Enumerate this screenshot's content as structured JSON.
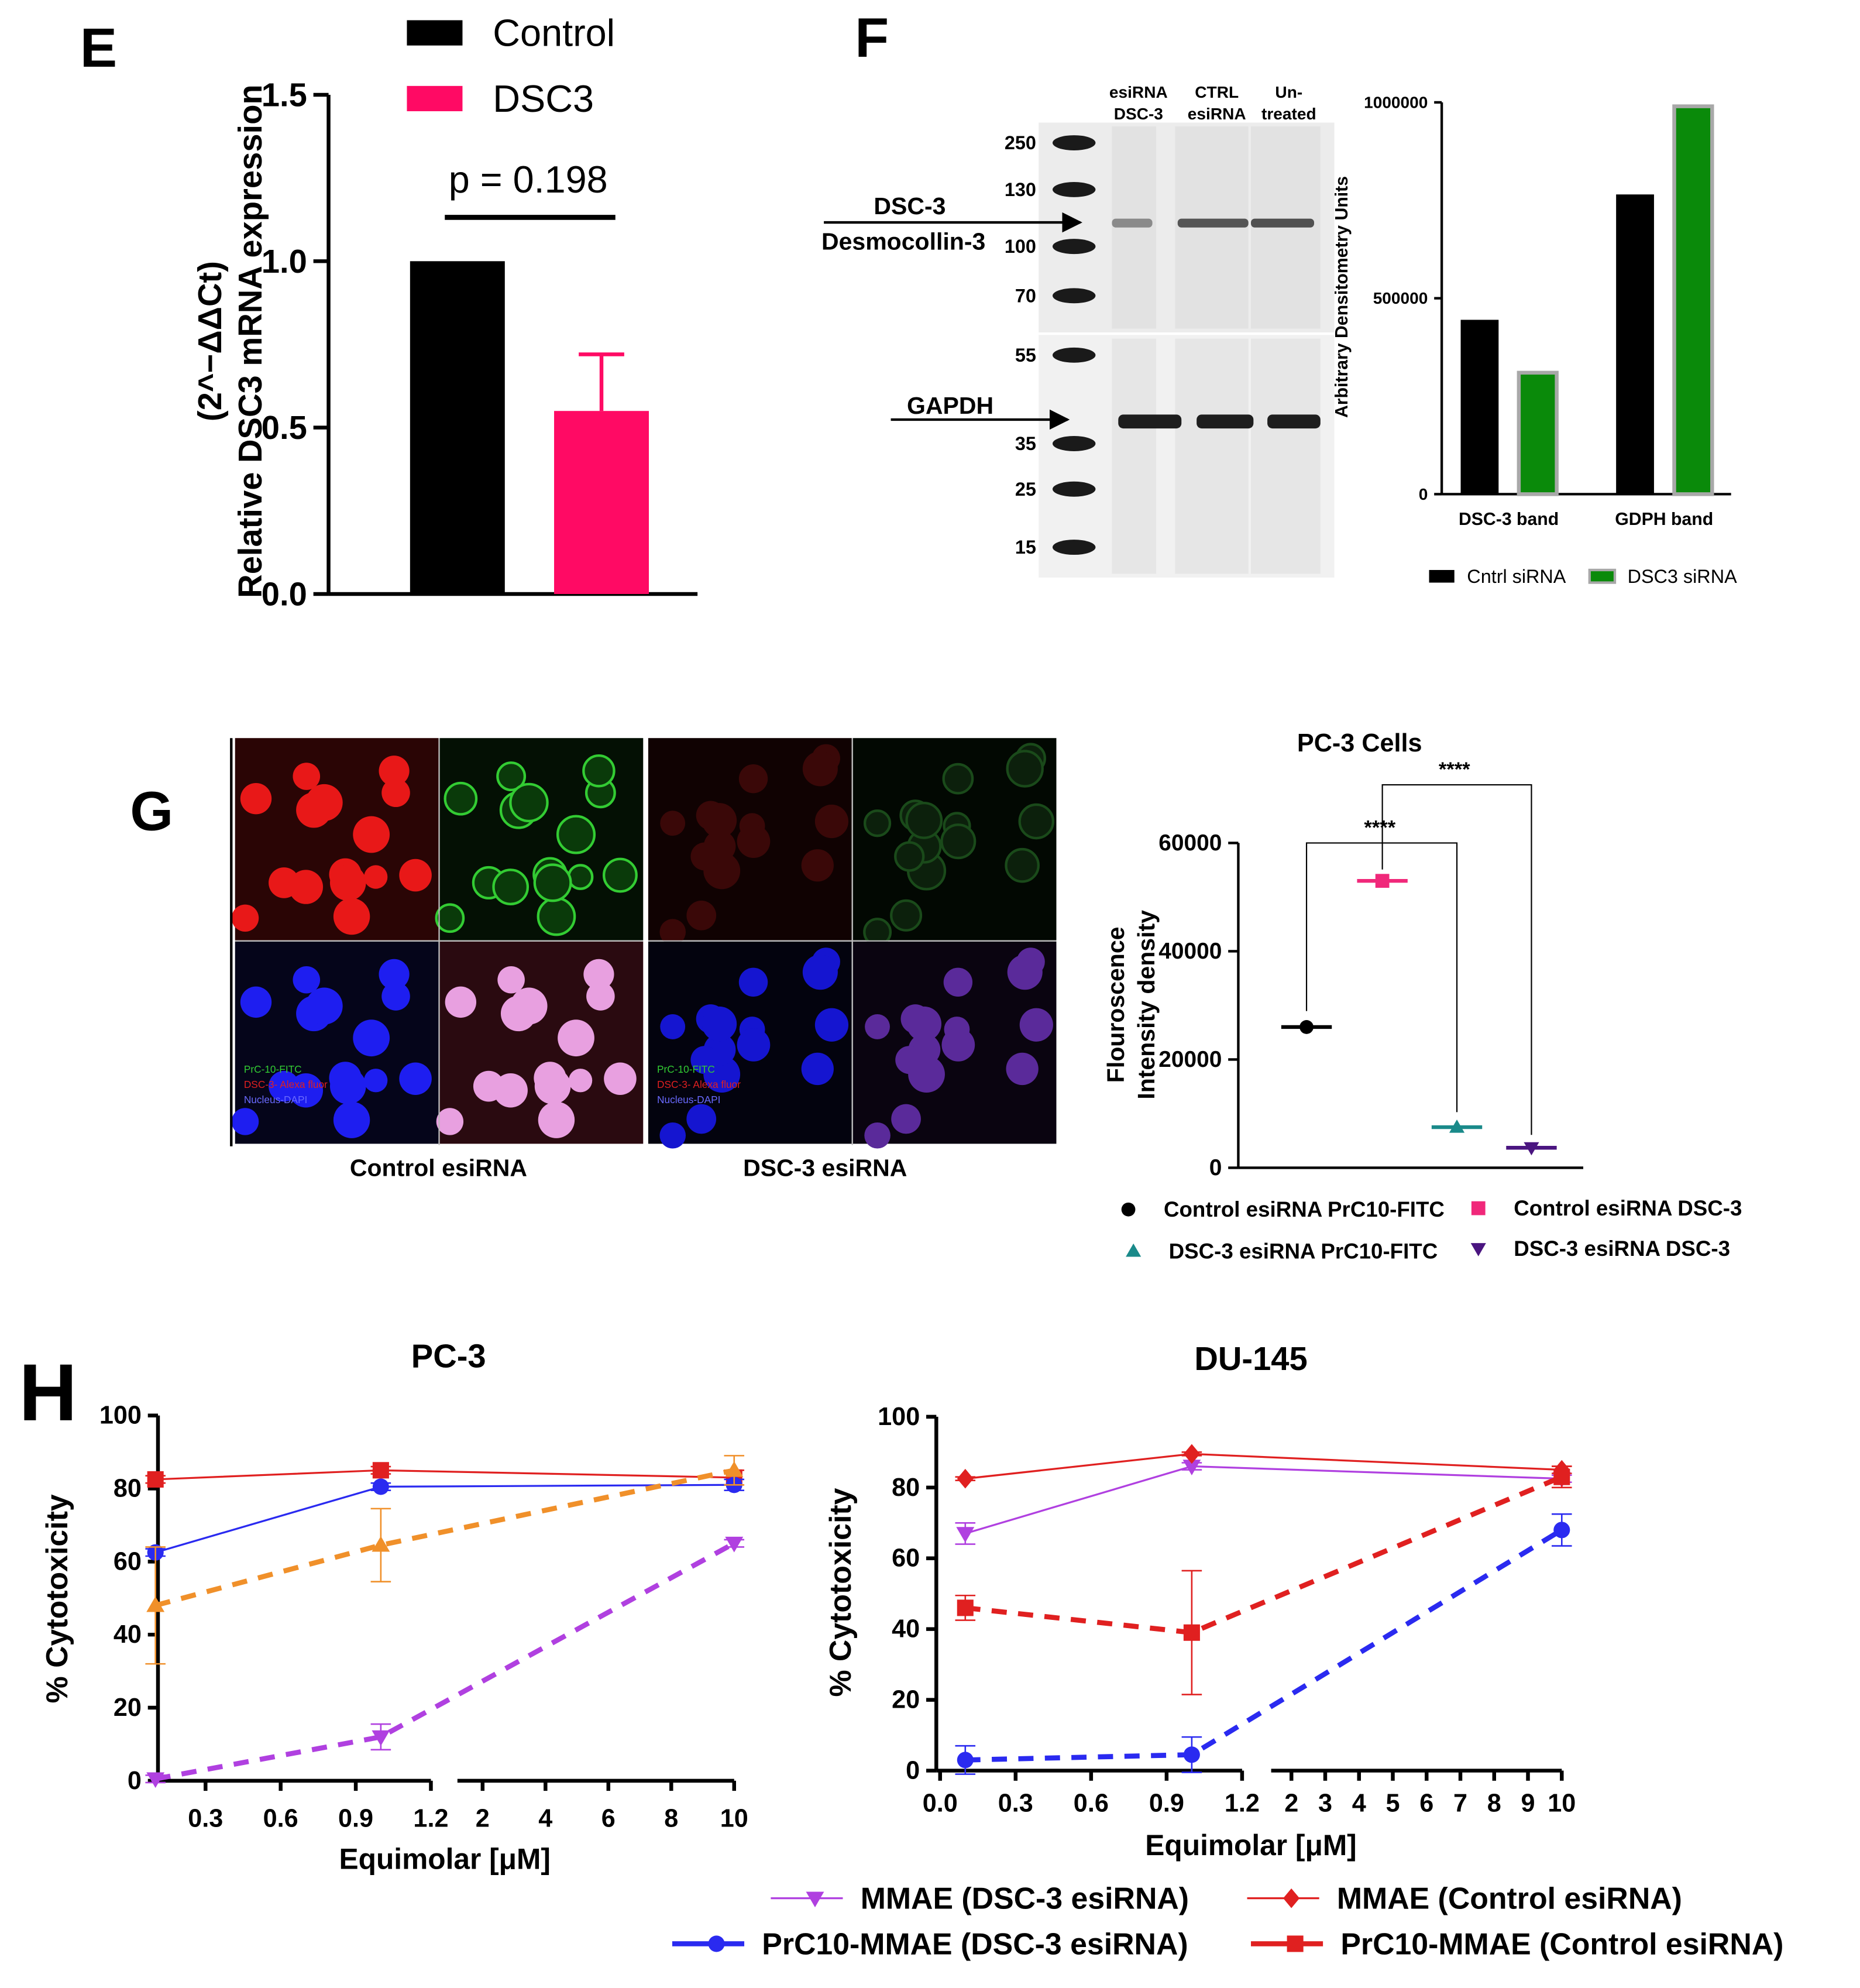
{
  "panel_letters": [
    "E",
    "F",
    "G",
    "H"
  ],
  "blot": {
    "lanes": [
      [
        "esiRNA",
        "DSC-3"
      ],
      [
        "CTRL",
        "esiRNA"
      ],
      [
        "Un-",
        "treated"
      ]
    ],
    "markers": [
      250,
      130,
      100,
      70,
      55,
      35,
      25,
      15
    ],
    "targets": [
      [
        "DSC-3",
        "Desmocollin-3"
      ],
      [
        "GAPDH"
      ]
    ]
  },
  "microscopy": {
    "groups": [
      "Control esiRNA",
      "DSC-3 esiRNA"
    ],
    "stain_legend": [
      "PrC-10-FITC",
      "DSC-3- Alexa fluor",
      "Nucleus-DAPI"
    ]
  },
  "chart_data": [
    {
      "type": "bar",
      "ylabel": [
        "Relative DSC3 mRNA expression",
        "(2^−ΔΔCt)"
      ],
      "annotation": "p = 0.198",
      "categories": [
        null
      ],
      "series": [
        {
          "name": "Control",
          "color": "#000000",
          "values": [
            1.0
          ]
        },
        {
          "name": "DSC3",
          "color": "#ff0a64",
          "values": [
            0.55
          ],
          "errors": [
            0.17
          ]
        }
      ],
      "ylim": [
        0,
        1.5
      ],
      "yticks": [
        {
          "value": 0,
          "label": "0.0"
        },
        0.5,
        {
          "value": 1,
          "label": "1.0"
        },
        1.5
      ],
      "legend": "top"
    },
    {
      "type": "bar",
      "ylabel": "Arbitrary Densitometry Units",
      "categories": [
        "DSC-3 band",
        "GDPH band"
      ],
      "series": [
        {
          "name": "Cntrl siRNA",
          "color": "#000000",
          "values": [
            445000,
            765000
          ]
        },
        {
          "name": "DSC3 siRNA",
          "color": "#0a8a0a",
          "edgecolor": "#a8a8a8",
          "values": [
            310000,
            990000
          ]
        }
      ],
      "ylim": [
        0,
        1000000
      ],
      "yticks": [
        0,
        500000,
        1000000
      ],
      "legend": "bottom"
    },
    {
      "type": "dot",
      "title": "PC-3 Cells",
      "ylabel": [
        "Flouroscence",
        "Intensity density"
      ],
      "categories": [
        null,
        null,
        null,
        null
      ],
      "series": [
        {
          "name": "Control esiRNA PrC10-FITC",
          "color": "#000000",
          "marker": "circle",
          "values": [
            26000,
            null,
            null,
            null
          ]
        },
        {
          "name": "Control esiRNA DSC-3",
          "color": "#f0287a",
          "marker": "square",
          "values": [
            null,
            53000,
            null,
            null
          ]
        },
        {
          "name": "DSC-3 esiRNA PrC10-FITC",
          "color": "#1a8a8a",
          "marker": "triangle",
          "values": [
            null,
            null,
            7500,
            null
          ]
        },
        {
          "name": "DSC-3 esiRNA DSC-3",
          "color": "#4a1580",
          "marker": "down-triangle",
          "values": [
            null,
            null,
            null,
            3700
          ]
        }
      ],
      "ylim": [
        0,
        60000
      ],
      "yticks": [
        0,
        20000,
        40000,
        60000
      ],
      "annotations": [
        "****",
        "****"
      ],
      "legend": "bottom"
    },
    {
      "type": "line",
      "title": "PC-3",
      "xlabel": "Equimolar [μM]",
      "ylabel": "% Cytotoxicity",
      "x": [
        0.1,
        1,
        10
      ],
      "xlim": [
        [
          0.1,
          1.2
        ],
        [
          1.2,
          10
        ]
      ],
      "xticks": [
        0.3,
        0.6,
        0.9,
        1.2,
        2,
        4,
        6,
        8,
        10
      ],
      "ylim": [
        0,
        100
      ],
      "yticks": [
        0,
        20,
        40,
        60,
        80,
        100
      ],
      "series": [
        {
          "color": "#e02020",
          "marker": "square",
          "dashed": false,
          "values": [
            82.5,
            85,
            83
          ],
          "errors": [
            1,
            1,
            2
          ]
        },
        {
          "color": "#2a2af0",
          "marker": "circle",
          "dashed": false,
          "values": [
            62.5,
            80.5,
            81
          ],
          "errors": [
            1,
            1,
            1.5
          ]
        },
        {
          "color": "#f0902a",
          "marker": "triangle",
          "dashed": true,
          "values": [
            48,
            64.5,
            85
          ],
          "errors": [
            16,
            10,
            4
          ]
        },
        {
          "color": "#b040e0",
          "marker": "down-triangle",
          "dashed": true,
          "values": [
            0.5,
            12,
            65
          ],
          "errors": [
            1,
            3.5,
            1
          ]
        }
      ]
    },
    {
      "type": "line",
      "title": "DU-145",
      "xlabel": "Equimolar [μM]",
      "ylabel": "% Cytotoxicity",
      "x": [
        0.1,
        1,
        10
      ],
      "xlim": [
        [
          0,
          1.2
        ],
        [
          1.4,
          10
        ]
      ],
      "xticks": [
        {
          "value": 0,
          "label": "0.0"
        },
        0.3,
        0.6,
        0.9,
        1.2,
        2,
        3,
        4,
        5,
        6,
        7,
        8,
        9,
        10
      ],
      "ylim": [
        0,
        100
      ],
      "yticks": [
        0,
        20,
        40,
        60,
        80,
        100
      ],
      "series": [
        {
          "name": "MMAE (DSC-3 esiRNA)",
          "color": "#b040e0",
          "marker": "down-triangle",
          "dashed": false,
          "values": [
            67,
            86,
            82.5
          ],
          "errors": [
            3,
            1,
            1
          ]
        },
        {
          "name": "MMAE (Control esiRNA)",
          "color": "#e02020",
          "marker": "diamond",
          "dashed": false,
          "values": [
            82.5,
            89.5,
            85
          ],
          "errors": [
            0.5,
            0.5,
            1
          ]
        },
        {
          "name": "PrC10-MMAE (DSC-3 esiRNA)",
          "color": "#2a2af0",
          "marker": "circle",
          "dashed": true,
          "values": [
            3,
            4.5,
            68
          ],
          "errors": [
            4,
            5,
            4.5
          ]
        },
        {
          "name": "PrC10-MMAE (Control esiRNA)",
          "color": "#e02020",
          "marker": "square",
          "dashed": true,
          "values": [
            46,
            39,
            83
          ],
          "errors": [
            3.5,
            17.5,
            3
          ]
        }
      ],
      "legend": "bottom"
    }
  ]
}
